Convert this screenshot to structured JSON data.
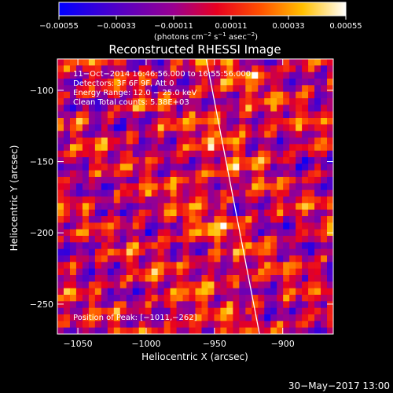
{
  "chart_data": {
    "type": "heatmap",
    "title": "Reconstructed RHESSI Image",
    "xlabel": "Heliocentric X (arcsec)",
    "ylabel": "Heliocentric Y (arcsec)",
    "xlim": [
      -1065,
      -863
    ],
    "ylim": [
      -271,
      -78
    ],
    "x_ticks": [
      -1050,
      -1000,
      -950,
      -900
    ],
    "x_tick_labels": [
      "−1050",
      "−1000",
      "−950",
      "−900"
    ],
    "y_ticks": [
      -100,
      -150,
      -200,
      -250
    ],
    "y_tick_labels": [
      "−100",
      "−150",
      "−200",
      "−250"
    ],
    "colorbar": {
      "min": -0.00055,
      "max": 0.00055,
      "colormap": "blue-purple-red-orange-yellow-white",
      "ticks": [
        -0.00055,
        -0.00033,
        -0.00011,
        0.00011,
        0.00033,
        0.00055
      ],
      "tick_labels": [
        "−0.00055",
        "−0.00033",
        "−0.00011",
        "0.00011",
        "0.00033",
        "0.00055"
      ],
      "units_prefix": "(photons cm",
      "units_exp1": "−2",
      "units_mid": " s",
      "units_exp2": "−1",
      "units_tail": " asec",
      "units_exp3": "−2",
      "units_close": ")"
    },
    "annotations": [
      "11−Oct−2014 16:46:56.000 to 16:55:56.000",
      "Detectors: 3F 6F 9F, Att 0",
      "Energy Range: 12.0 − 25.0 keV",
      "Clean     Total counts: 5.38E+03"
    ],
    "peak_label": "Position of Peak:  [−1011,−262]",
    "peak_position": [
      -1011,
      -262
    ],
    "limb_line": [
      [
        -956,
        -78
      ],
      [
        -917,
        -271
      ]
    ],
    "pixel_grid": {
      "nx": 44,
      "ny": 42
    },
    "pattern_note": "fringe pattern"
  },
  "footer": {
    "timestamp": "30−May−2017 13:00"
  }
}
